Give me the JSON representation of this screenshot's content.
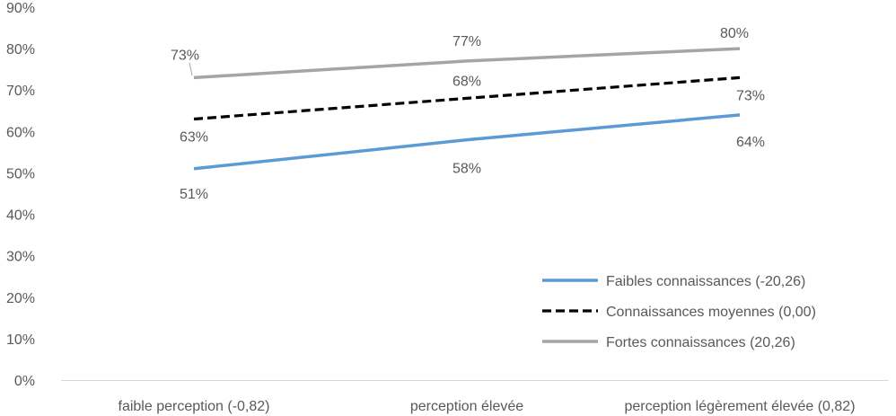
{
  "chart_data": {
    "type": "line",
    "title": "",
    "xlabel": "",
    "ylabel": "",
    "categories": [
      "faible perception (-0,82)",
      "perception élevée",
      "perception légèrement élevée (0,82)"
    ],
    "ylim": [
      0,
      90
    ],
    "yticks": [
      "0%",
      "10%",
      "20%",
      "30%",
      "40%",
      "50%",
      "60%",
      "70%",
      "80%",
      "90%"
    ],
    "grid": false,
    "legend_position": "bottom-right",
    "series": [
      {
        "name": "Faibles connaissances (-20,26)",
        "values": [
          51,
          58,
          64
        ],
        "labels": [
          "51%",
          "58%",
          "64%"
        ],
        "color": "#5B9BD5",
        "dash": "solid"
      },
      {
        "name": "Connaissances moyennes (0,00)",
        "values": [
          63,
          68,
          73
        ],
        "labels": [
          "63%",
          "68%",
          "73%"
        ],
        "color": "#000000",
        "dash": "dashed"
      },
      {
        "name": "Fortes connaissances (20,26)",
        "values": [
          73,
          77,
          80
        ],
        "labels": [
          "73%",
          "77%",
          "80%"
        ],
        "color": "#A5A5A5",
        "dash": "solid"
      }
    ]
  }
}
